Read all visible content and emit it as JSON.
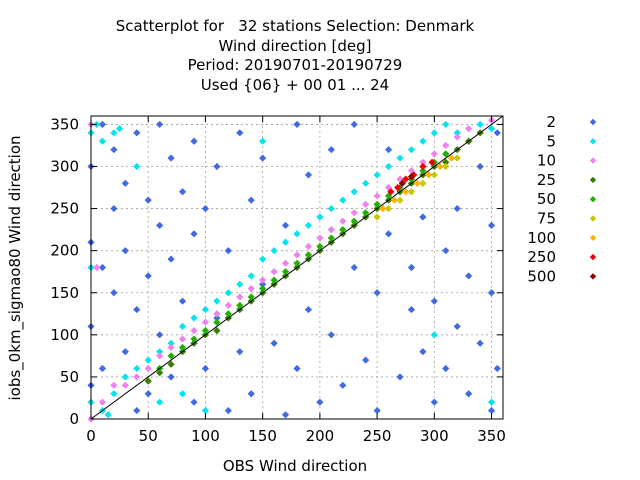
{
  "chart_data": {
    "type": "scatter",
    "title_lines": [
      "Scatterplot for   32 stations Selection: Denmark",
      "Wind direction [deg]",
      "Period: 20190701-20190729",
      "Used {06} + 00 01 ... 24"
    ],
    "xlabel": "OBS Wind direction",
    "ylabel": "iobs_0km_sigmao80 Wind direction",
    "xlim": [
      0,
      360
    ],
    "ylim": [
      0,
      360
    ],
    "xticks": [
      0,
      50,
      100,
      150,
      200,
      250,
      300,
      350
    ],
    "yticks": [
      0,
      50,
      100,
      150,
      200,
      250,
      300,
      350
    ],
    "grid": true,
    "diagonal_line": true,
    "legend_position": "right",
    "legend": [
      {
        "label": "2",
        "color": "#4169e1"
      },
      {
        "label": "5",
        "color": "#00e5ee"
      },
      {
        "label": "10",
        "color": "#ee82ee"
      },
      {
        "label": "25",
        "color": "#3a7d00"
      },
      {
        "label": "50",
        "color": "#22b000"
      },
      {
        "label": "75",
        "color": "#c8c800"
      },
      {
        "label": "100",
        "color": "#ffb000"
      },
      {
        "label": "250",
        "color": "#ee0000"
      },
      {
        "label": "500",
        "color": "#8b0000"
      }
    ],
    "series": [
      {
        "name": "2",
        "points": [
          [
            0,
            40
          ],
          [
            0,
            110
          ],
          [
            0,
            210
          ],
          [
            0,
            300
          ],
          [
            10,
            60
          ],
          [
            10,
            180
          ],
          [
            10,
            350
          ],
          [
            20,
            150
          ],
          [
            20,
            250
          ],
          [
            20,
            320
          ],
          [
            30,
            80
          ],
          [
            30,
            200
          ],
          [
            30,
            280
          ],
          [
            40,
            10
          ],
          [
            40,
            130
          ],
          [
            40,
            340
          ],
          [
            50,
            30
          ],
          [
            50,
            170
          ],
          [
            50,
            260
          ],
          [
            60,
            100
          ],
          [
            60,
            230
          ],
          [
            60,
            350
          ],
          [
            70,
            50
          ],
          [
            70,
            190
          ],
          [
            70,
            310
          ],
          [
            80,
            140
          ],
          [
            80,
            270
          ],
          [
            90,
            20
          ],
          [
            90,
            220
          ],
          [
            90,
            330
          ],
          [
            100,
            60
          ],
          [
            100,
            250
          ],
          [
            110,
            120
          ],
          [
            110,
            300
          ],
          [
            120,
            10
          ],
          [
            120,
            200
          ],
          [
            130,
            80
          ],
          [
            130,
            340
          ],
          [
            140,
            260
          ],
          [
            140,
            30
          ],
          [
            150,
            160
          ],
          [
            150,
            310
          ],
          [
            160,
            90
          ],
          [
            170,
            230
          ],
          [
            170,
            5
          ],
          [
            180,
            350
          ],
          [
            180,
            60
          ],
          [
            190,
            130
          ],
          [
            190,
            290
          ],
          [
            200,
            20
          ],
          [
            210,
            100
          ],
          [
            210,
            320
          ],
          [
            220,
            40
          ],
          [
            230,
            180
          ],
          [
            230,
            350
          ],
          [
            240,
            70
          ],
          [
            250,
            150
          ],
          [
            250,
            10
          ],
          [
            260,
            220
          ],
          [
            260,
            320
          ],
          [
            270,
            50
          ],
          [
            280,
            130
          ],
          [
            280,
            180
          ],
          [
            290,
            80
          ],
          [
            290,
            240
          ],
          [
            300,
            20
          ],
          [
            300,
            140
          ],
          [
            310,
            200
          ],
          [
            310,
            60
          ],
          [
            320,
            110
          ],
          [
            320,
            250
          ],
          [
            330,
            30
          ],
          [
            330,
            170
          ],
          [
            340,
            90
          ],
          [
            340,
            300
          ],
          [
            350,
            10
          ],
          [
            350,
            150
          ],
          [
            350,
            230
          ],
          [
            355,
            60
          ],
          [
            355,
            340
          ]
        ]
      },
      {
        "name": "5",
        "points": [
          [
            0,
            20
          ],
          [
            0,
            180
          ],
          [
            0,
            340
          ],
          [
            10,
            10
          ],
          [
            10,
            330
          ],
          [
            20,
            30
          ],
          [
            20,
            340
          ],
          [
            30,
            50
          ],
          [
            40,
            60
          ],
          [
            40,
            300
          ],
          [
            50,
            70
          ],
          [
            60,
            80
          ],
          [
            60,
            20
          ],
          [
            70,
            90
          ],
          [
            80,
            110
          ],
          [
            80,
            30
          ],
          [
            90,
            120
          ],
          [
            100,
            130
          ],
          [
            100,
            10
          ],
          [
            110,
            140
          ],
          [
            120,
            150
          ],
          [
            130,
            160
          ],
          [
            140,
            170
          ],
          [
            150,
            190
          ],
          [
            160,
            200
          ],
          [
            170,
            210
          ],
          [
            180,
            220
          ],
          [
            190,
            230
          ],
          [
            200,
            240
          ],
          [
            210,
            250
          ],
          [
            220,
            260
          ],
          [
            230,
            270
          ],
          [
            240,
            280
          ],
          [
            250,
            290
          ],
          [
            260,
            300
          ],
          [
            270,
            310
          ],
          [
            280,
            320
          ],
          [
            290,
            330
          ],
          [
            300,
            340
          ],
          [
            310,
            350
          ],
          [
            320,
            340
          ],
          [
            330,
            330
          ],
          [
            340,
            350
          ],
          [
            350,
            345
          ],
          [
            350,
            20
          ],
          [
            5,
            350
          ],
          [
            15,
            5
          ],
          [
            25,
            345
          ],
          [
            300,
            100
          ],
          [
            150,
            330
          ]
        ]
      },
      {
        "name": "10",
        "points": [
          [
            0,
            0
          ],
          [
            0,
            350
          ],
          [
            5,
            180
          ],
          [
            10,
            20
          ],
          [
            20,
            40
          ],
          [
            30,
            40
          ],
          [
            40,
            50
          ],
          [
            50,
            60
          ],
          [
            60,
            75
          ],
          [
            70,
            85
          ],
          [
            80,
            95
          ],
          [
            90,
            105
          ],
          [
            100,
            115
          ],
          [
            110,
            125
          ],
          [
            120,
            135
          ],
          [
            130,
            145
          ],
          [
            140,
            155
          ],
          [
            150,
            165
          ],
          [
            160,
            175
          ],
          [
            170,
            185
          ],
          [
            180,
            195
          ],
          [
            190,
            205
          ],
          [
            200,
            215
          ],
          [
            210,
            225
          ],
          [
            220,
            235
          ],
          [
            230,
            245
          ],
          [
            240,
            255
          ],
          [
            250,
            265
          ],
          [
            260,
            275
          ],
          [
            270,
            285
          ],
          [
            280,
            295
          ],
          [
            290,
            305
          ],
          [
            300,
            315
          ],
          [
            310,
            325
          ],
          [
            320,
            335
          ],
          [
            330,
            345
          ],
          [
            340,
            340
          ],
          [
            350,
            355
          ]
        ]
      },
      {
        "name": "25",
        "points": [
          [
            50,
            45
          ],
          [
            60,
            55
          ],
          [
            70,
            65
          ],
          [
            80,
            80
          ],
          [
            90,
            90
          ],
          [
            100,
            100
          ],
          [
            110,
            105
          ],
          [
            120,
            120
          ],
          [
            130,
            130
          ],
          [
            140,
            140
          ],
          [
            150,
            150
          ],
          [
            160,
            160
          ],
          [
            170,
            170
          ],
          [
            180,
            180
          ],
          [
            190,
            190
          ],
          [
            200,
            200
          ],
          [
            210,
            210
          ],
          [
            220,
            220
          ],
          [
            230,
            230
          ],
          [
            240,
            240
          ],
          [
            250,
            250
          ],
          [
            260,
            260
          ],
          [
            270,
            270
          ],
          [
            280,
            280
          ],
          [
            290,
            290
          ],
          [
            300,
            300
          ],
          [
            310,
            305
          ],
          [
            320,
            320
          ],
          [
            330,
            330
          ],
          [
            340,
            340
          ]
        ]
      },
      {
        "name": "50",
        "points": [
          [
            60,
            60
          ],
          [
            70,
            75
          ],
          [
            80,
            85
          ],
          [
            90,
            95
          ],
          [
            100,
            105
          ],
          [
            110,
            115
          ],
          [
            120,
            125
          ],
          [
            130,
            135
          ],
          [
            140,
            145
          ],
          [
            150,
            155
          ],
          [
            160,
            165
          ],
          [
            170,
            175
          ],
          [
            180,
            185
          ],
          [
            190,
            195
          ],
          [
            200,
            205
          ],
          [
            210,
            215
          ],
          [
            220,
            225
          ],
          [
            230,
            235
          ],
          [
            240,
            245
          ],
          [
            250,
            255
          ],
          [
            260,
            265
          ],
          [
            270,
            275
          ],
          [
            280,
            285
          ],
          [
            290,
            295
          ],
          [
            300,
            305
          ],
          [
            310,
            315
          ]
        ]
      },
      {
        "name": "75",
        "points": [
          [
            250,
            240
          ],
          [
            260,
            250
          ],
          [
            270,
            260
          ],
          [
            280,
            270
          ],
          [
            290,
            280
          ],
          [
            300,
            290
          ],
          [
            310,
            300
          ],
          [
            320,
            310
          ]
        ]
      },
      {
        "name": "100",
        "points": [
          [
            255,
            250
          ],
          [
            265,
            260
          ],
          [
            275,
            270
          ],
          [
            285,
            280
          ],
          [
            295,
            290
          ],
          [
            305,
            300
          ],
          [
            315,
            310
          ]
        ]
      },
      {
        "name": "250",
        "points": [
          [
            262,
            270
          ],
          [
            268,
            275
          ],
          [
            275,
            285
          ],
          [
            282,
            290
          ],
          [
            290,
            300
          ],
          [
            298,
            305
          ]
        ]
      },
      {
        "name": "500",
        "points": [
          [
            272,
            280
          ],
          [
            280,
            288
          ]
        ]
      }
    ]
  }
}
